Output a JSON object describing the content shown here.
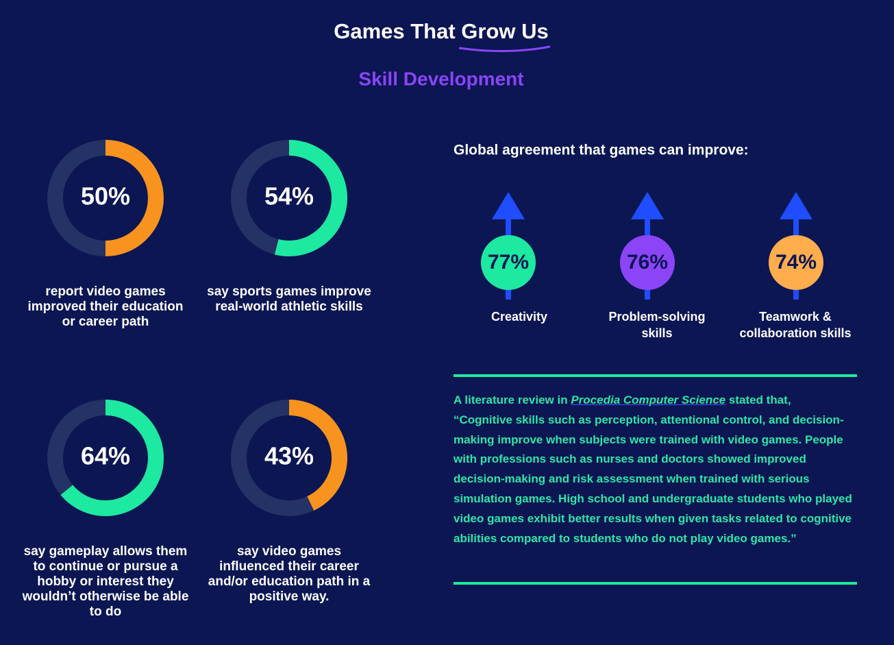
{
  "header": {
    "title_start": "Games That",
    "title_end": "Grow Us",
    "subtitle": "Skill Development"
  },
  "donuts": [
    {
      "value": 50,
      "label": "50%",
      "color": "#f7931e",
      "caption": "report video games improved their education or career path"
    },
    {
      "value": 54,
      "label": "54%",
      "color": "#1de9a0",
      "caption": "say sports games improve real-world athletic skills"
    },
    {
      "value": 64,
      "label": "64%",
      "color": "#1de9a0",
      "caption": "say gameplay allows them to continue or pursue a hobby or interest they wouldn’t otherwise be able to do"
    },
    {
      "value": 43,
      "label": "43%",
      "color": "#f7931e",
      "caption": "say video games influenced their career and/or education path in a positive way."
    }
  ],
  "improvements": {
    "title": "Global agreement that games can improve:",
    "items": [
      {
        "label": "77%",
        "color": "#1de9a0",
        "name": "Creativity"
      },
      {
        "label": "76%",
        "color": "#8c44f7",
        "name": "Problem-solving skills"
      },
      {
        "label": "74%",
        "color": "#ffad4d",
        "name": "Teamwork & collaboration skills"
      }
    ]
  },
  "quote": {
    "intro": "A literature review in",
    "source": "Procedia Computer Science",
    "intro_end": "stated that,",
    "text": "“Cognitive skills such as perception, attentional control, and decision-making improve when subjects were trained with video games. People with professions such as nurses and doctors showed improved decision-making and risk assessment when trained with serious simulation games. High school and undergraduate students who played video games exhibit better results when given tasks related to cognitive abilities compared to students who do not play video games.”"
  }
}
